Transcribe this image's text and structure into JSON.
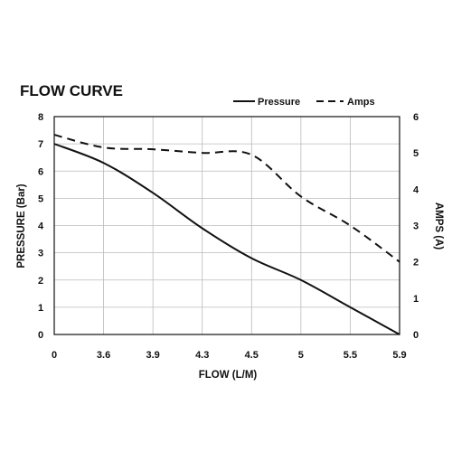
{
  "chart_data": {
    "type": "line",
    "title": "FLOW CURVE",
    "xlabel": "FLOW (L/M)",
    "ylabel_left": "PRESSURE (Bar)",
    "ylabel_right": "AMPS (A)",
    "x_tick_labels": [
      "0",
      "3.6",
      "3.9",
      "4.3",
      "4.5",
      "5",
      "5.5",
      "5.9"
    ],
    "y_left_ticks": [
      "0",
      "1",
      "2",
      "3",
      "4",
      "5",
      "6",
      "7",
      "8"
    ],
    "y_right_ticks": [
      "0",
      "1",
      "2",
      "3",
      "4",
      "5",
      "6"
    ],
    "ylim_left": [
      0,
      8
    ],
    "ylim_right": [
      0,
      6
    ],
    "grid": true,
    "legend_position": "top-right",
    "series": [
      {
        "name": "Pressure",
        "axis": "left",
        "style": "solid",
        "x": [
          "0",
          "3.6",
          "3.9",
          "4.3",
          "4.5",
          "5",
          "5.5",
          "5.9"
        ],
        "values": [
          7.0,
          6.3,
          5.2,
          3.9,
          2.8,
          2.0,
          1.0,
          0.0
        ]
      },
      {
        "name": "Amps",
        "axis": "right",
        "style": "dashed",
        "x": [
          "0",
          "3.6",
          "3.9",
          "4.3",
          "4.5",
          "5",
          "5.5",
          "5.9"
        ],
        "values": [
          5.5,
          5.15,
          5.1,
          5.0,
          4.95,
          3.8,
          3.0,
          2.0
        ]
      }
    ]
  },
  "colors": {
    "line": "#111111",
    "grid": "#bbbbbb"
  }
}
